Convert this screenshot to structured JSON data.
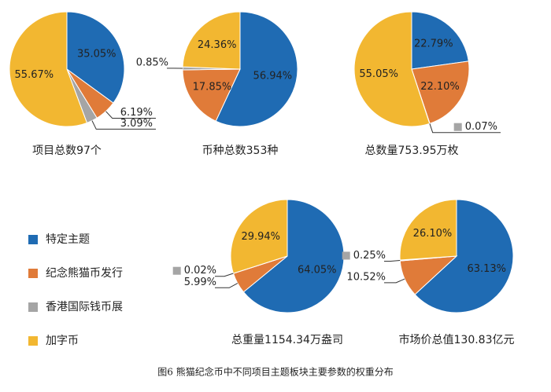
{
  "chart_data": [
    {
      "type": "pie",
      "title": "项目总数97个",
      "values": [
        35.05,
        6.19,
        3.09,
        55.67
      ],
      "value_labels": [
        "35.05%",
        "6.19%",
        "3.09%",
        "55.67%"
      ],
      "colors": [
        "#1f6bb3",
        "#e07b39",
        "#a5a5a5",
        "#f2b731"
      ]
    },
    {
      "type": "pie",
      "title": "币种总数353种",
      "values": [
        56.94,
        17.85,
        0.85,
        24.36
      ],
      "value_labels": [
        "56.94%",
        "17.85%",
        "0.85%",
        "24.36%"
      ],
      "colors": [
        "#1f6bb3",
        "#e07b39",
        "#a5a5a5",
        "#f2b731"
      ]
    },
    {
      "type": "pie",
      "title": "总数量753.95万枚",
      "values": [
        22.79,
        22.1,
        0.07,
        55.05
      ],
      "value_labels": [
        "22.79%",
        "22.10%",
        "0.07%",
        "55.05%"
      ],
      "colors": [
        "#1f6bb3",
        "#e07b39",
        "#a5a5a5",
        "#f2b731"
      ]
    },
    {
      "type": "pie",
      "title": "总重量1154.34万盎司",
      "values": [
        64.05,
        5.99,
        0.02,
        29.94
      ],
      "value_labels": [
        "64.05%",
        "5.99%",
        "0.02%",
        "29.94%"
      ],
      "colors": [
        "#1f6bb3",
        "#e07b39",
        "#a5a5a5",
        "#f2b731"
      ]
    },
    {
      "type": "pie",
      "title": "市场价总值130.83亿元",
      "values": [
        63.13,
        10.52,
        0.25,
        26.1
      ],
      "value_labels": [
        "63.13%",
        "10.52%",
        "0.25%",
        "26.10%"
      ],
      "colors": [
        "#1f6bb3",
        "#e07b39",
        "#a5a5a5",
        "#f2b731"
      ]
    }
  ],
  "legend": {
    "labels": [
      "特定主题",
      "纪念熊猫币发行",
      "香港国际钱币展",
      "加字币"
    ],
    "colors": [
      "#1f6bb3",
      "#e07b39",
      "#a5a5a5",
      "#f2b731"
    ]
  },
  "caption": "图6 熊猫纪念币中不同项目主题板块主要参数的权重分布"
}
